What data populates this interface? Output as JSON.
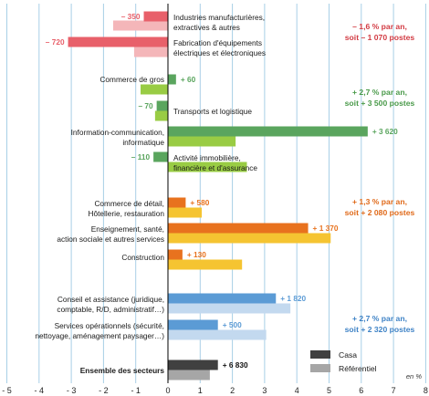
{
  "chart_data": {
    "type": "bar",
    "orientation": "horizontal",
    "unit_label": "en %",
    "xlim": [
      -5,
      8
    ],
    "x_ticks": [
      "- 5",
      "- 4",
      "- 3",
      "- 2",
      "- 1",
      "0",
      "1",
      "2",
      "3",
      "4",
      "5",
      "6",
      "7",
      "8"
    ],
    "grid": "vertical",
    "legend": {
      "placement": "bottom-right",
      "items": [
        {
          "name": "Casa",
          "color": "#404040"
        },
        {
          "name": "Référentiel",
          "color": "#a6a6a6"
        }
      ]
    },
    "series_names": [
      "Casa",
      "Référentiel"
    ],
    "categories": [
      {
        "lines": [
          "Industries manufacturières,",
          "extractives & autres"
        ],
        "label_side": "right",
        "casa": -0.75,
        "ref": -1.7,
        "value_label": "– 350",
        "colors": [
          "#e8606a",
          "#f4b6b9"
        ]
      },
      {
        "lines": [
          "Fabrication d'équipements",
          "électriques et électroniques"
        ],
        "label_side": "right",
        "casa": -3.1,
        "ref": -1.05,
        "value_label": "– 720",
        "colors": [
          "#e8606a",
          "#f4b6b9"
        ]
      },
      {
        "lines": [
          "Commerce de gros"
        ],
        "label_side": "left",
        "casa": 0.25,
        "ref": -0.85,
        "value_label": "+ 60",
        "colors": [
          "#5aa55e",
          "#99cc44"
        ]
      },
      {
        "lines": [
          "Transports et logistique"
        ],
        "label_side": "right",
        "casa": -0.35,
        "ref": -0.4,
        "value_label": "– 70",
        "colors": [
          "#5aa55e",
          "#99cc44"
        ]
      },
      {
        "lines": [
          "Information-communication,",
          "informatique"
        ],
        "label_side": "left",
        "casa": 6.2,
        "ref": 2.1,
        "value_label": "+ 3 620",
        "colors": [
          "#5aa55e",
          "#99cc44"
        ]
      },
      {
        "lines": [
          "Activité immobilière,",
          "financière et d'assurance"
        ],
        "label_side": "right",
        "casa": -0.45,
        "ref": 2.45,
        "value_label": "– 110",
        "colors": [
          "#5aa55e",
          "#99cc44"
        ]
      },
      {
        "lines": [
          "Commerce de détail,",
          "Hôtellerie, restauration"
        ],
        "label_side": "left",
        "casa": 0.55,
        "ref": 1.05,
        "value_label": "+ 580",
        "colors": [
          "#e8721e",
          "#f5c431"
        ]
      },
      {
        "lines": [
          "Enseignement, santé,",
          "action sociale et autres services"
        ],
        "label_side": "left",
        "casa": 4.35,
        "ref": 5.05,
        "value_label": "+ 1 370",
        "colors": [
          "#e8721e",
          "#f5c431"
        ]
      },
      {
        "lines": [
          "Construction"
        ],
        "label_side": "left",
        "casa": 0.45,
        "ref": 2.3,
        "value_label": "+ 130",
        "colors": [
          "#e8721e",
          "#f5c431"
        ]
      },
      {
        "lines": [
          "Conseil et assistance (juridique,",
          "comptable, R/D, administratif…)"
        ],
        "label_side": "left",
        "casa": 3.35,
        "ref": 3.8,
        "value_label": "+ 1 820",
        "colors": [
          "#5b9bd5",
          "#c3d9ef"
        ]
      },
      {
        "lines": [
          "Services opérationnels (sécurité,",
          "nettoyage, aménagement paysager…)"
        ],
        "label_side": "left",
        "casa": 1.55,
        "ref": 3.05,
        "value_label": "+ 500",
        "colors": [
          "#5b9bd5",
          "#c3d9ef"
        ]
      },
      {
        "lines": [
          "Ensemble des secteurs"
        ],
        "label_side": "left",
        "bold": true,
        "casa": 1.55,
        "ref": 1.3,
        "value_label": "+ 6 830",
        "colors": [
          "#404040",
          "#a6a6a6"
        ]
      }
    ],
    "group_annotations": [
      {
        "lines": [
          "– 1,6 % par an,",
          "soit – 1 070 postes"
        ],
        "color": "#d23b43"
      },
      {
        "lines": [
          "+ 2,7 % par an,",
          "soit + 3 500 postes"
        ],
        "color": "#4a9a4a"
      },
      {
        "lines": [
          "+ 1,3 % par an,",
          "soit + 2 080 postes"
        ],
        "color": "#e06a1a"
      },
      {
        "lines": [
          "+ 2,7 % par an,",
          "soit + 2 320 postes"
        ],
        "color": "#3f83c6"
      }
    ]
  }
}
